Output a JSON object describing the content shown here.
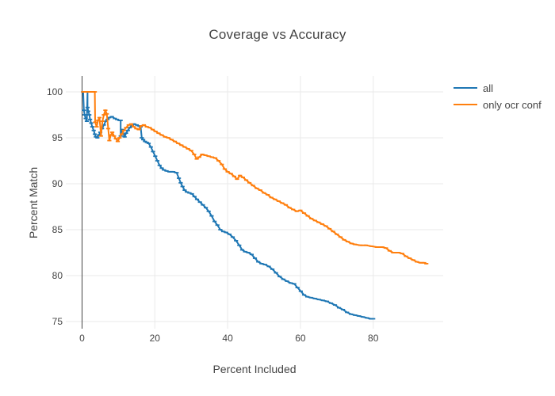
{
  "title": "Coverage vs Accuracy",
  "axes": {
    "x": {
      "title": "Percent Included",
      "tick_labels": [
        "0",
        "20",
        "40",
        "60",
        "80"
      ],
      "tick_values": [
        0,
        20,
        40,
        60,
        80
      ],
      "range": [
        -4.5,
        99.2
      ]
    },
    "y": {
      "title": "Percent Match",
      "tick_labels": [
        "75",
        "80",
        "85",
        "90",
        "95",
        "100"
      ],
      "tick_values": [
        75,
        80,
        85,
        90,
        95,
        100
      ],
      "range": [
        74.2,
        101.7
      ]
    }
  },
  "legend": {
    "items": [
      {
        "label": "all",
        "color": "#1f77b4"
      },
      {
        "label": "only ocr conf",
        "color": "#ff7f0e"
      }
    ]
  },
  "colors": {
    "background": "#ffffff",
    "grid": "#e9e9e9",
    "zeroline": "#444444",
    "text": "#444444",
    "series_all": "#1f77b4",
    "series_only_ocr_conf": "#ff7f0e"
  },
  "chart_data": {
    "type": "line",
    "title": "Coverage vs Accuracy",
    "xlabel": "Percent Included",
    "ylabel": "Percent Match",
    "xlim": [
      -4.5,
      99.2
    ],
    "ylim": [
      74.2,
      101.7
    ],
    "grid": true,
    "legend_position": "right",
    "series": [
      {
        "name": "all",
        "color": "#1f77b4",
        "x": [
          0.3,
          0.5,
          0.7,
          1.0,
          1.3,
          1.5,
          1.5,
          1.7,
          2.0,
          2.2,
          2.5,
          2.8,
          3.2,
          3.5,
          3.8,
          4.2,
          4.6,
          5.0,
          5.5,
          6.0,
          6.5,
          7.0,
          7.5,
          8.2,
          9.0,
          9.6,
          10.3,
          10.6,
          10.6,
          11.0,
          11.3,
          11.7,
          12.1,
          12.6,
          13.1,
          13.7,
          14.3,
          15.0,
          15.6,
          16.1,
          16.4,
          16.8,
          17.3,
          17.8,
          18.3,
          18.9,
          19.5,
          20.1,
          20.7,
          21.3,
          21.9,
          22.5,
          23.2,
          24.0,
          25.0,
          26.0,
          26.6,
          27.1,
          27.6,
          28.2,
          28.8,
          29.5,
          30.2,
          30.9,
          31.6,
          32.4,
          33.2,
          34.0,
          34.8,
          35.6,
          36.4,
          37.2,
          38.0,
          38.8,
          39.6,
          40.5,
          41.4,
          42.3,
          43.2,
          44.0,
          44.8,
          45.7,
          46.6,
          47.5,
          48.4,
          49.3,
          50.3,
          51.3,
          52.3,
          53.3,
          54.3,
          55.3,
          56.3,
          57.3,
          58.3,
          59.2,
          60.1,
          61.0,
          61.9,
          62.9,
          64.0,
          65.1,
          66.2,
          67.3,
          68.4,
          69.5,
          70.6,
          71.7,
          72.8,
          73.9,
          75.0,
          76.1,
          77.2,
          78.3,
          79.3,
          80.0
        ],
        "y": [
          100,
          98.0,
          97.5,
          97.1,
          96.8,
          100,
          98.3,
          97.9,
          97.5,
          97.0,
          96.6,
          96.2,
          95.8,
          95.4,
          95.1,
          95.0,
          95.3,
          95.6,
          96.0,
          96.4,
          96.8,
          97.0,
          97.2,
          97.3,
          97.1,
          97.0,
          96.9,
          96.9,
          95.2,
          95.9,
          95.4,
          95.1,
          95.5,
          95.8,
          96.1,
          96.3,
          96.5,
          96.4,
          96.3,
          96.2,
          95.0,
          94.8,
          94.6,
          94.5,
          94.4,
          94.0,
          93.5,
          93.0,
          92.5,
          92.0,
          91.7,
          91.5,
          91.4,
          91.3,
          91.3,
          91.2,
          90.6,
          90.1,
          89.7,
          89.3,
          89.1,
          89.0,
          88.9,
          88.6,
          88.3,
          88.0,
          87.7,
          87.4,
          87.0,
          86.5,
          85.9,
          85.5,
          85.0,
          84.8,
          84.7,
          84.5,
          84.2,
          83.8,
          83.3,
          82.8,
          82.6,
          82.5,
          82.3,
          81.9,
          81.5,
          81.3,
          81.2,
          81.0,
          80.7,
          80.3,
          79.9,
          79.6,
          79.4,
          79.2,
          79.1,
          78.7,
          78.3,
          77.9,
          77.7,
          77.6,
          77.5,
          77.4,
          77.3,
          77.2,
          77.0,
          76.8,
          76.5,
          76.3,
          76.0,
          75.8,
          75.7,
          75.6,
          75.5,
          75.4,
          75.3,
          75.3
        ]
      },
      {
        "name": "only ocr conf",
        "color": "#ff7f0e",
        "x": [
          0.3,
          1.0,
          2.0,
          3.0,
          3.5,
          3.6,
          4.0,
          4.4,
          4.8,
          5.2,
          5.6,
          6.0,
          6.4,
          6.8,
          7.2,
          7.5,
          7.9,
          8.3,
          8.8,
          9.3,
          9.8,
          10.3,
          10.9,
          11.5,
          12.1,
          12.8,
          13.5,
          14.2,
          14.9,
          15.6,
          16.3,
          17.0,
          17.8,
          18.6,
          19.4,
          20.2,
          21.0,
          21.9,
          22.8,
          23.7,
          24.6,
          25.5,
          26.4,
          27.3,
          28.2,
          29.1,
          30.0,
          30.8,
          31.5,
          32.2,
          33.0,
          33.9,
          34.8,
          35.7,
          36.6,
          37.5,
          38.4,
          39.2,
          40.0,
          40.9,
          41.8,
          42.6,
          43.4,
          44.2,
          45.1,
          46.0,
          47.0,
          48.0,
          49.0,
          50.0,
          51.0,
          52.0,
          53.0,
          54.0,
          55.0,
          56.0,
          57.0,
          58.0,
          59.0,
          60.0,
          61.0,
          62.0,
          63.0,
          64.0,
          65.0,
          66.0,
          67.0,
          68.0,
          69.0,
          70.0,
          71.0,
          72.0,
          73.0,
          74.0,
          75.0,
          76.5,
          78.0,
          79.5,
          81.0,
          82.5,
          83.5,
          84.5,
          85.5,
          87.0,
          88.0,
          89.0,
          90.0,
          91.0,
          92.0,
          93.0,
          94.0,
          94.6
        ],
        "y": [
          100,
          100,
          100,
          100,
          100,
          96.7,
          96.2,
          96.9,
          97.2,
          95.2,
          96.8,
          97.5,
          98.0,
          97.6,
          96.0,
          94.7,
          95.3,
          95.6,
          95.2,
          94.9,
          94.6,
          95.0,
          95.4,
          95.8,
          96.1,
          96.4,
          96.5,
          96.2,
          96.0,
          95.9,
          96.3,
          96.4,
          96.2,
          96.1,
          95.9,
          95.7,
          95.5,
          95.3,
          95.1,
          95.0,
          94.8,
          94.6,
          94.4,
          94.2,
          94.0,
          93.8,
          93.6,
          93.2,
          92.7,
          92.9,
          93.2,
          93.1,
          93.0,
          92.9,
          92.8,
          92.5,
          92.1,
          91.6,
          91.3,
          91.1,
          90.8,
          90.5,
          90.9,
          90.7,
          90.4,
          90.1,
          89.8,
          89.5,
          89.3,
          89.0,
          88.8,
          88.5,
          88.3,
          88.1,
          87.9,
          87.7,
          87.4,
          87.2,
          87.0,
          87.1,
          86.8,
          86.5,
          86.2,
          86.0,
          85.8,
          85.6,
          85.4,
          85.1,
          84.8,
          84.5,
          84.2,
          83.9,
          83.7,
          83.5,
          83.4,
          83.3,
          83.3,
          83.2,
          83.1,
          83.1,
          83.0,
          82.7,
          82.5,
          82.5,
          82.4,
          82.1,
          81.9,
          81.7,
          81.5,
          81.4,
          81.4,
          81.3
        ]
      }
    ]
  }
}
